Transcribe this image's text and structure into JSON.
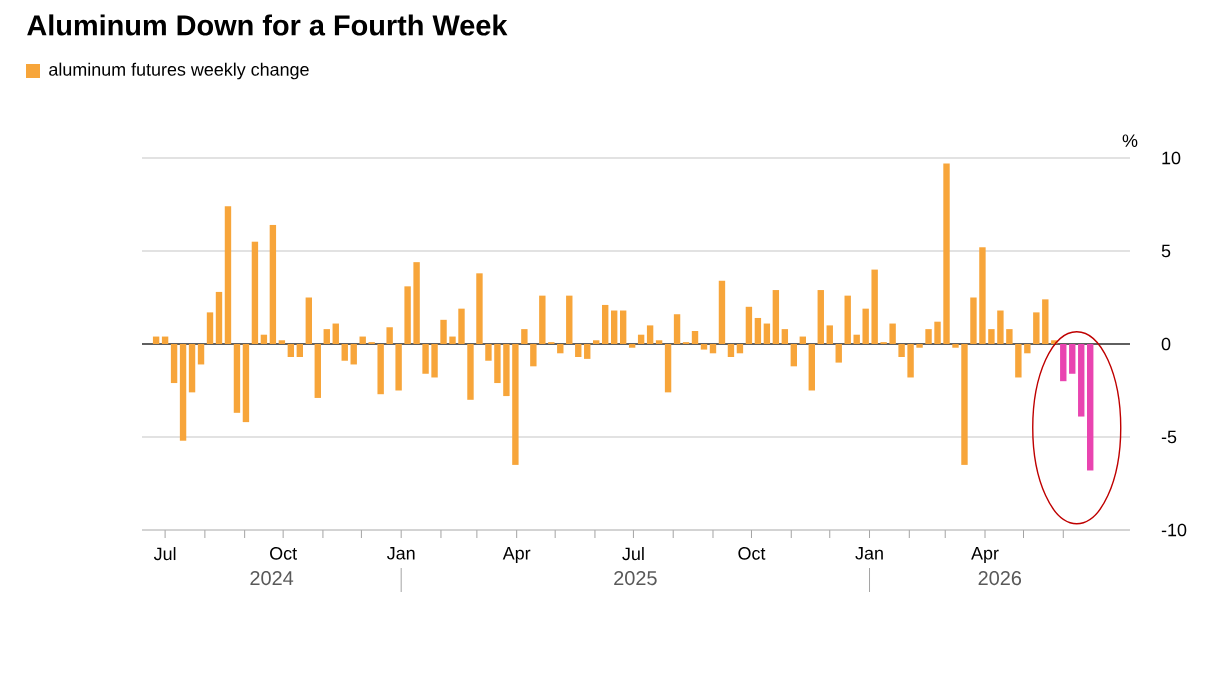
{
  "chart_data": {
    "type": "bar",
    "title": "Aluminum Down for a Fourth Week",
    "ylabel": "%",
    "x": [
      "2024-06-24",
      "2024-07-01",
      "2024-07-08",
      "2024-07-15",
      "2024-07-22",
      "2024-07-29",
      "2024-08-05",
      "2024-08-12",
      "2024-08-19",
      "2024-08-26",
      "2024-09-02",
      "2024-09-09",
      "2024-09-16",
      "2024-09-23",
      "2024-09-30",
      "2024-10-07",
      "2024-10-14",
      "2024-10-21",
      "2024-10-28",
      "2024-11-04",
      "2024-11-11",
      "2024-11-18",
      "2024-11-25",
      "2024-12-02",
      "2024-12-09",
      "2024-12-16",
      "2024-12-23",
      "2024-12-30",
      "2025-01-06",
      "2025-01-13",
      "2025-01-20",
      "2025-01-27",
      "2025-02-03",
      "2025-02-10",
      "2025-02-17",
      "2025-02-24",
      "2025-03-03",
      "2025-03-10",
      "2025-03-17",
      "2025-03-24",
      "2025-03-31",
      "2025-04-07",
      "2025-04-14",
      "2025-04-21",
      "2025-04-28",
      "2025-05-05",
      "2025-05-12",
      "2025-05-19",
      "2025-05-26",
      "2025-06-02",
      "2025-06-09",
      "2025-06-16",
      "2025-06-23",
      "2025-06-30",
      "2025-07-07",
      "2025-07-14",
      "2025-07-21",
      "2025-07-28",
      "2025-08-04",
      "2025-08-11",
      "2025-08-18",
      "2025-08-25",
      "2025-09-01",
      "2025-09-08",
      "2025-09-15",
      "2025-09-22",
      "2025-09-29",
      "2025-10-06",
      "2025-10-13",
      "2025-10-20",
      "2025-10-27",
      "2025-11-03",
      "2025-11-10",
      "2025-11-17",
      "2025-11-24",
      "2025-12-01",
      "2025-12-08",
      "2025-12-15",
      "2025-12-22",
      "2025-12-29",
      "2026-01-05",
      "2026-01-12",
      "2026-01-19",
      "2026-01-26",
      "2026-02-02",
      "2026-02-09",
      "2026-02-16",
      "2026-02-23",
      "2026-03-02",
      "2026-03-09",
      "2026-03-16",
      "2026-03-23",
      "2026-03-30",
      "2026-04-06",
      "2026-04-13",
      "2026-04-20",
      "2026-04-27",
      "2026-05-04",
      "2026-05-11",
      "2026-05-18",
      "2026-05-25",
      "2026-06-01",
      "2026-06-08",
      "2026-06-15",
      "2026-06-22"
    ],
    "series": [
      {
        "name": "aluminum futures weekly change",
        "color": "#f7a53a",
        "values": [
          0.4,
          0.4,
          -2.1,
          -5.2,
          -2.6,
          -1.1,
          1.7,
          2.8,
          7.4,
          -3.7,
          -4.2,
          5.5,
          0.5,
          6.4,
          0.2,
          -0.7,
          -0.7,
          2.5,
          -2.9,
          0.8,
          1.1,
          -0.9,
          -1.1,
          0.4,
          0.1,
          -2.7,
          0.9,
          -2.5,
          3.1,
          4.4,
          -1.6,
          -1.8,
          1.3,
          0.4,
          1.9,
          -3.0,
          3.8,
          -0.9,
          -2.1,
          -2.8,
          -6.5,
          0.8,
          -1.2,
          2.6,
          0.1,
          -0.5,
          2.6,
          -0.7,
          -0.8,
          0.2,
          2.1,
          1.8,
          1.8,
          -0.2,
          0.5,
          1.0,
          0.2,
          -2.6,
          1.6,
          0.1,
          0.7,
          -0.3,
          -0.5,
          3.4,
          -0.7,
          -0.5,
          2.0,
          1.4,
          1.1,
          2.9,
          0.8,
          -1.2,
          0.4,
          -2.5,
          2.9,
          1.0,
          -1.0,
          2.6,
          0.5,
          1.9,
          4.0,
          0.1,
          1.1,
          -0.7,
          -1.8,
          -0.2,
          0.8,
          1.2,
          9.7,
          -0.2,
          -6.5,
          2.5,
          5.2,
          0.8,
          1.8,
          0.8,
          -1.8,
          -0.5,
          1.7,
          2.4,
          0.2,
          -2.0,
          -1.6,
          -3.9,
          -6.8
        ],
        "colors": [
          "#f7a53a",
          "#f7a53a",
          "#f7a53a",
          "#f7a53a",
          "#f7a53a",
          "#f7a53a",
          "#f7a53a",
          "#f7a53a",
          "#f7a53a",
          "#f7a53a",
          "#f7a53a",
          "#f7a53a",
          "#f7a53a",
          "#f7a53a",
          "#f7a53a",
          "#f7a53a",
          "#f7a53a",
          "#f7a53a",
          "#f7a53a",
          "#f7a53a",
          "#f7a53a",
          "#f7a53a",
          "#f7a53a",
          "#f7a53a",
          "#f7a53a",
          "#f7a53a",
          "#f7a53a",
          "#f7a53a",
          "#f7a53a",
          "#f7a53a",
          "#f7a53a",
          "#f7a53a",
          "#f7a53a",
          "#f7a53a",
          "#f7a53a",
          "#f7a53a",
          "#f7a53a",
          "#f7a53a",
          "#f7a53a",
          "#f7a53a",
          "#f7a53a",
          "#f7a53a",
          "#f7a53a",
          "#f7a53a",
          "#f7a53a",
          "#f7a53a",
          "#f7a53a",
          "#f7a53a",
          "#f7a53a",
          "#f7a53a",
          "#f7a53a",
          "#f7a53a",
          "#f7a53a",
          "#f7a53a",
          "#f7a53a",
          "#f7a53a",
          "#f7a53a",
          "#f7a53a",
          "#f7a53a",
          "#f7a53a",
          "#f7a53a",
          "#f7a53a",
          "#f7a53a",
          "#f7a53a",
          "#f7a53a",
          "#f7a53a",
          "#f7a53a",
          "#f7a53a",
          "#f7a53a",
          "#f7a53a",
          "#f7a53a",
          "#f7a53a",
          "#f7a53a",
          "#f7a53a",
          "#f7a53a",
          "#f7a53a",
          "#f7a53a",
          "#f7a53a",
          "#f7a53a",
          "#f7a53a",
          "#f7a53a",
          "#f7a53a",
          "#f7a53a",
          "#f7a53a",
          "#f7a53a",
          "#f7a53a",
          "#f7a53a",
          "#f7a53a",
          "#f7a53a",
          "#f7a53a",
          "#f7a53a",
          "#f7a53a",
          "#f7a53a",
          "#f7a53a",
          "#f7a53a",
          "#f7a53a",
          "#f7a53a",
          "#f7a53a",
          "#f7a53a",
          "#f7a53a",
          "#f7a53a",
          "#e944b0",
          "#e944b0",
          "#e944b0",
          "#e944b0"
        ]
      }
    ],
    "xlim": [
      "2024-06-13",
      "2026-07-23"
    ],
    "xticks": [
      {
        "value": "2024-07-01",
        "label": "Jul"
      },
      {
        "value": "2024-08-01",
        "label": null
      },
      {
        "value": "2024-09-01",
        "label": null
      },
      {
        "value": "2024-10-01",
        "label": "Oct"
      },
      {
        "value": "2024-11-01",
        "label": null
      },
      {
        "value": "2024-12-01",
        "label": null
      },
      {
        "value": "2025-01-01",
        "label": "Jan"
      },
      {
        "value": "2025-02-01",
        "label": null
      },
      {
        "value": "2025-03-01",
        "label": null
      },
      {
        "value": "2025-04-01",
        "label": "Apr"
      },
      {
        "value": "2025-05-01",
        "label": null
      },
      {
        "value": "2025-06-01",
        "label": null
      },
      {
        "value": "2025-07-01",
        "label": "Jul"
      },
      {
        "value": "2025-08-01",
        "label": null
      },
      {
        "value": "2025-09-01",
        "label": null
      },
      {
        "value": "2025-10-01",
        "label": "Oct"
      },
      {
        "value": "2025-11-01",
        "label": null
      },
      {
        "value": "2025-12-01",
        "label": null
      },
      {
        "value": "2026-01-01",
        "label": "Jan"
      },
      {
        "value": "2026-02-01",
        "label": null
      },
      {
        "value": "2026-03-01",
        "label": null
      },
      {
        "value": "2026-04-01",
        "label": "Apr"
      },
      {
        "value": "2026-05-01",
        "label": null
      },
      {
        "value": "2026-06-01",
        "label": null
      }
    ],
    "ylim": [
      -10,
      10
    ],
    "yticks": [
      -10,
      -5,
      0,
      5,
      10
    ],
    "grid": "y",
    "legend": "top left",
    "annotations": [
      "2024",
      "2025",
      "2026"
    ]
  }
}
